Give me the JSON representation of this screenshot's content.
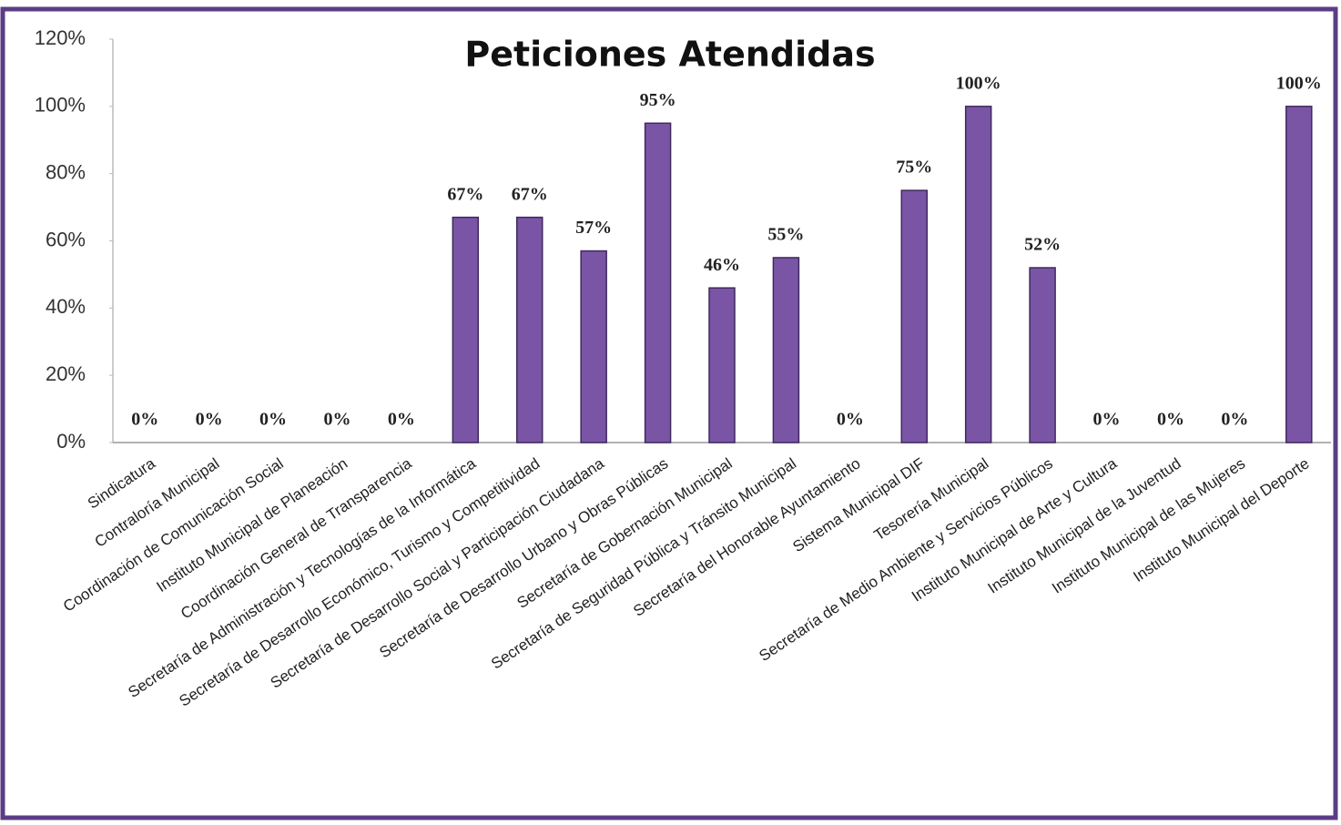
{
  "chart_data": {
    "type": "bar",
    "title": "Peticiones Atendidas",
    "categories": [
      "Sindicatura",
      "Contraloría Municipal",
      "Coordinación de Comunicación Social",
      "Instituto Municipal de Planeación",
      "Coordinación General de Transparencia",
      "Secretaría de Administración y Tecnologías de la Informática",
      "Secretaría de Desarrollo Económico, Turismo y Competitividad",
      "Secretaría de Desarrollo Social y Participación Ciudadana",
      "Secretaría de Desarrollo Urbano y Obras Públicas",
      "Secretaría de Gobernación Municipal",
      "Secretaría de Seguridad Pública y Tránsito Municipal",
      "Secretaría del Honorable Ayuntamiento",
      "Sistema Municipal DIF",
      "Tesorería Municipal",
      "Secretaría de Medio Ambiente y Servicios Públicos",
      "Instituto Municipal de Arte y Cultura",
      "Instituto Municipal de la Juventud",
      "Instituto Municipal de las Mujeres",
      "Instituto Municipal del Deporte"
    ],
    "values": [
      0,
      0,
      0,
      0,
      0,
      67,
      67,
      57,
      95,
      46,
      55,
      0,
      75,
      100,
      52,
      0,
      0,
      0,
      100
    ],
    "value_labels": [
      "0%",
      "0%",
      "0%",
      "0%",
      "0%",
      "67%",
      "67%",
      "57%",
      "95%",
      "46%",
      "55%",
      "0%",
      "75%",
      "100%",
      "52%",
      "0%",
      "0%",
      "0%",
      "100%"
    ],
    "color": "#7a55a6",
    "ylim": [
      0,
      120
    ],
    "yticks": [
      {
        "value": 0,
        "label": "0%"
      },
      {
        "value": 20,
        "label": "20%"
      },
      {
        "value": 40,
        "label": "40%"
      },
      {
        "value": 60,
        "label": "60%"
      },
      {
        "value": 80,
        "label": "80%"
      },
      {
        "value": 100,
        "label": "100%"
      },
      {
        "value": 120,
        "label": "120%"
      }
    ],
    "grid": false
  }
}
